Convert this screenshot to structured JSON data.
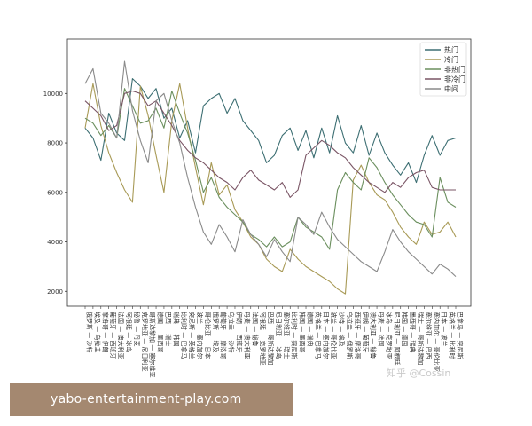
{
  "chart_data": {
    "type": "line",
    "title": "",
    "xlabel": "",
    "ylabel": "",
    "ylim": [
      1400,
      12200
    ],
    "yticks": [
      2000,
      4000,
      6000,
      8000,
      10000
    ],
    "grid": false,
    "legend_position": "top-right",
    "categories": [
      "俄罗斯 — 沙特",
      "埃及 — 乌拉圭",
      "摩洛哥 — 伊朗",
      "葡萄牙 — 西班牙",
      "法国 — 澳大利亚",
      "阿根廷 — 冰岛",
      "秘鲁 — 丹麦",
      "克罗地亚 — 尼日利亚",
      "哥斯达黎加 — 塞尔维亚",
      "德国 — 墨西哥",
      "巴西 — 瑞士",
      "瑞典 — 韩国",
      "比利时 — 巴拿马",
      "突尼斯 — 英格兰",
      "波兰 — 塞内加尔",
      "哥伦比亚 — 日本",
      "俄罗斯 — 埃及",
      "葡萄牙 — 摩洛哥",
      "乌拉圭 — 沙特",
      "伊朗 — 西班牙",
      "丹麦 — 澳大利亚",
      "法国 — 秘鲁",
      "阿根廷 — 克罗地亚",
      "巴西 — 哥斯达黎加",
      "尼日利亚 — 冰岛",
      "塞尔维亚 — 瑞士",
      "比利时 — 突尼斯",
      "韩国 — 墨西哥",
      "德国 — 瑞典",
      "英格兰 — 巴拿马",
      "日本 — 塞内加尔",
      "波兰 — 哥伦比亚",
      "沙特 — 埃及",
      "乌拉圭 — 俄罗斯",
      "西班牙 — 摩洛哥",
      "伊朗 — 葡萄牙",
      "澳大利亚 — 秘鲁",
      "丹麦 — 法国",
      "冰岛 — 克罗地亚",
      "尼日利亚 — 阿根廷",
      "韩国 — 德国",
      "墨西哥 — 瑞典",
      "瑞士 — 哥斯达黎加",
      "塞尔维亚 — 巴西",
      "塞内加尔 — 哥伦比亚",
      "日本 — 波兰",
      "英格兰 — 比利时",
      "巴拿马 — 突尼斯"
    ],
    "series": [
      {
        "name": "热门",
        "color": "#3d6f73",
        "values": [
          8600,
          8200,
          7300,
          9200,
          8400,
          8100,
          10600,
          10300,
          9800,
          10200,
          9000,
          9400,
          8200,
          8900,
          7600,
          9500,
          9800,
          10000,
          9200,
          9800,
          8900,
          8500,
          8100,
          7200,
          7500,
          8300,
          8600,
          7700,
          8500,
          7400,
          8600,
          7600,
          9100,
          8000,
          7600,
          8700,
          7500,
          8400,
          7600,
          7100,
          6700,
          7200,
          6400,
          7500,
          8300,
          7500,
          8100,
          8200
        ]
      },
      {
        "name": "冷门",
        "color": "#a89a56",
        "values": [
          8600,
          10400,
          8700,
          7600,
          6800,
          6100,
          5600,
          10300,
          9100,
          7500,
          6000,
          8900,
          10400,
          8600,
          7000,
          5500,
          7200,
          5900,
          6300,
          5300,
          4800,
          4200,
          3900,
          3300,
          3000,
          2800,
          3700,
          3300,
          3000,
          2800,
          2600,
          2400,
          2100,
          1900,
          6500,
          7100,
          6400,
          5900,
          5700,
          5200,
          4600,
          4200,
          3900,
          4800,
          4300,
          4400,
          4800,
          4200
        ]
      },
      {
        "name": "非热门",
        "color": "#6b8f5e",
        "values": [
          9000,
          8800,
          8300,
          8700,
          8200,
          10200,
          9500,
          8800,
          8900,
          9400,
          8600,
          10100,
          9200,
          8400,
          7300,
          6000,
          6600,
          5800,
          5400,
          5100,
          4800,
          4300,
          4100,
          3800,
          4200,
          3800,
          4000,
          5000,
          4600,
          4400,
          4200,
          3700,
          6100,
          6800,
          6400,
          6100,
          7400,
          7000,
          6400,
          5900,
          5500,
          5100,
          4800,
          4700,
          4200,
          6600,
          5600,
          5400
        ]
      },
      {
        "name": "非冷门",
        "color": "#7a5565",
        "values": [
          9700,
          9400,
          9100,
          8500,
          8700,
          10000,
          10100,
          10000,
          9500,
          9700,
          9200,
          8700,
          8100,
          7700,
          7400,
          7200,
          6900,
          6600,
          6400,
          6100,
          6600,
          6900,
          6500,
          6300,
          6100,
          6400,
          5800,
          6100,
          7500,
          7800,
          8100,
          7900,
          7600,
          7400,
          7000,
          6700,
          6400,
          6200,
          6000,
          6400,
          6200,
          6600,
          6800,
          6900,
          6200,
          6100,
          6100,
          6100
        ]
      },
      {
        "name": "中间",
        "color": "#8a8a8a",
        "values": [
          10400,
          11000,
          9200,
          8800,
          8200,
          11300,
          9300,
          8100,
          7200,
          9700,
          10000,
          8900,
          8000,
          6600,
          5400,
          4400,
          3900,
          4700,
          4200,
          3600,
          4900,
          4300,
          3900,
          3400,
          4100,
          3600,
          3200,
          5000,
          4700,
          4300,
          5200,
          4600,
          4100,
          3800,
          3500,
          3200,
          3000,
          2800,
          3600,
          4500,
          4000,
          3600,
          3300,
          3000,
          2700,
          3100,
          2900,
          2600
        ]
      }
    ]
  },
  "watermark": "知乎 @Cossin",
  "banner": "yabo-entertainment-play.com"
}
